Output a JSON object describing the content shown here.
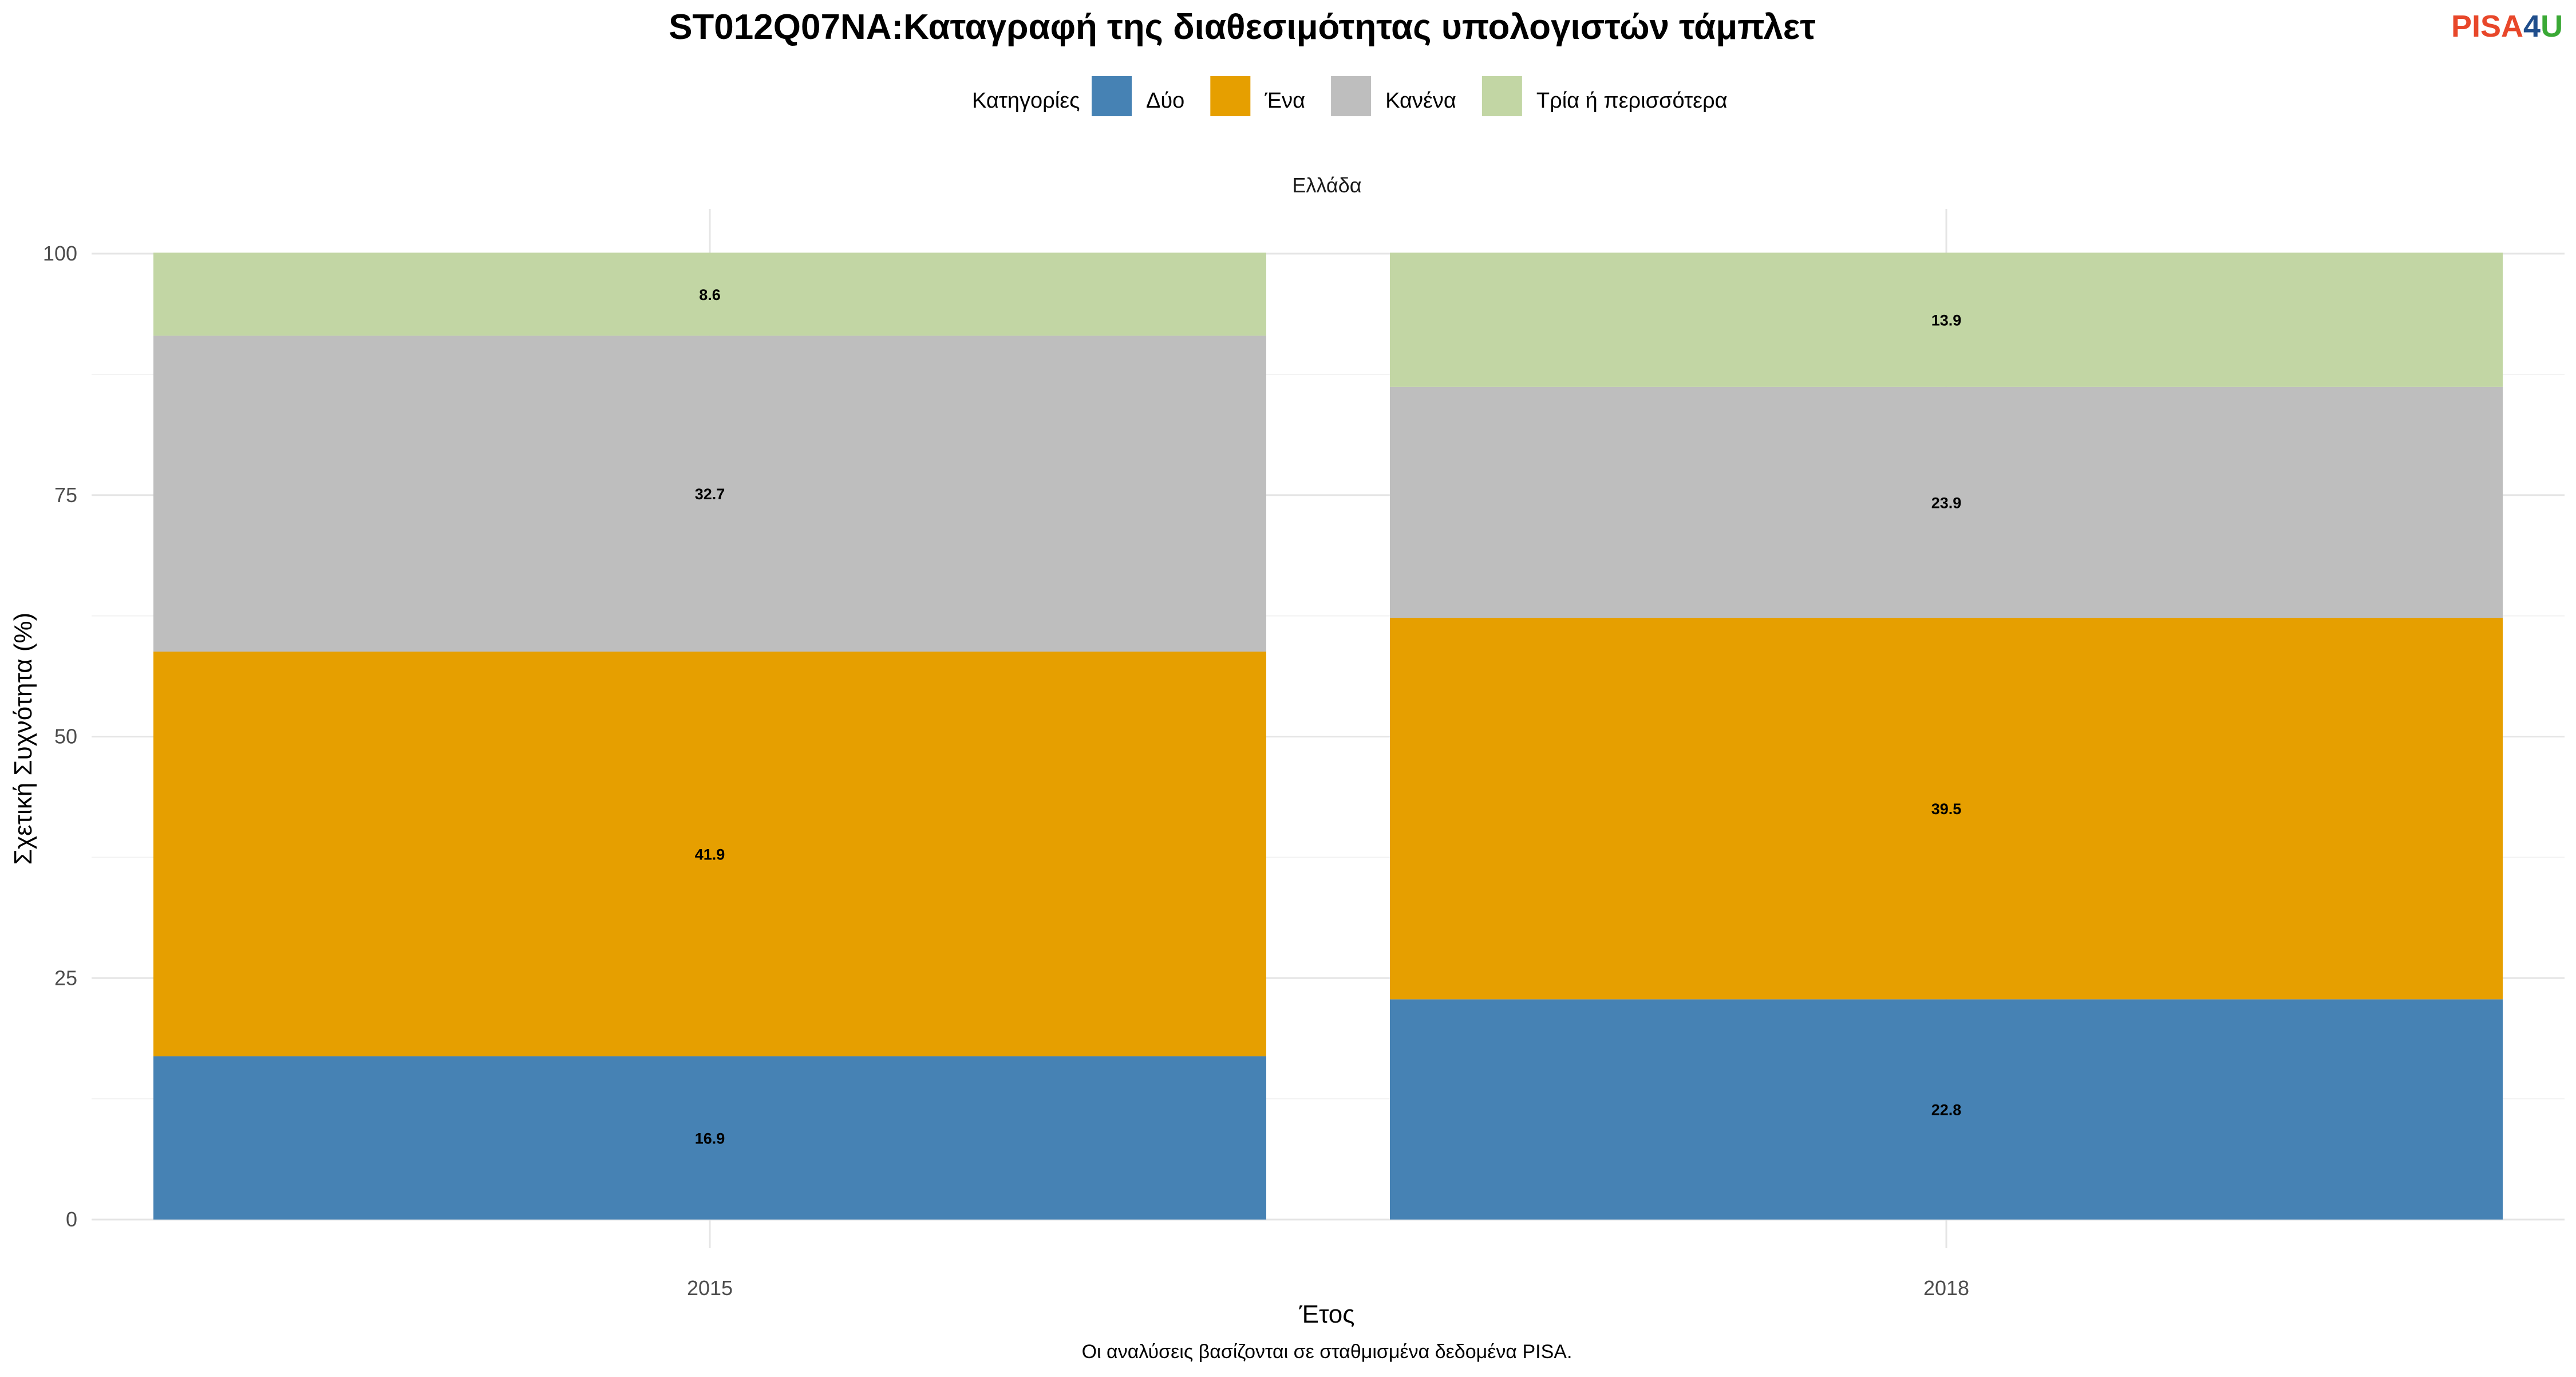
{
  "logo": {
    "part1": "PISA",
    "part2": "4",
    "part3": "U",
    "colors": {
      "part1": "#E8472A",
      "part2": "#1F4E8C",
      "part3": "#3AA935"
    }
  },
  "chart_data": {
    "type": "bar",
    "stacked": true,
    "title": "ST012Q07NA:Καταγραφή της διαθεσιμότητας υπολογιστών τάμπλετ",
    "facet": "Ελλάδα",
    "xlabel": "Έτος",
    "ylabel": "Σχετική Συχνότητα (%)",
    "caption": "Οι αναλύσεις βασίζονται σε σταθμισμένα δεδομένα PISA.",
    "legend_title": "Κατηγορίες",
    "legend_placement": "top",
    "grid": true,
    "ylim": [
      0,
      100
    ],
    "yticks": [
      0,
      25,
      50,
      75,
      100
    ],
    "categories": [
      "2015",
      "2018"
    ],
    "series": [
      {
        "name": "Δύο",
        "color": "#4682B4",
        "values": [
          16.9,
          22.8
        ]
      },
      {
        "name": "Ένα",
        "color": "#E69F00",
        "values": [
          41.9,
          39.5
        ]
      },
      {
        "name": "Κανένα",
        "color": "#BEBEBE",
        "values": [
          32.7,
          23.9
        ]
      },
      {
        "name": "Τρία ή περισσότερα",
        "color": "#C2D6A4",
        "values": [
          8.6,
          13.9
        ]
      }
    ]
  }
}
